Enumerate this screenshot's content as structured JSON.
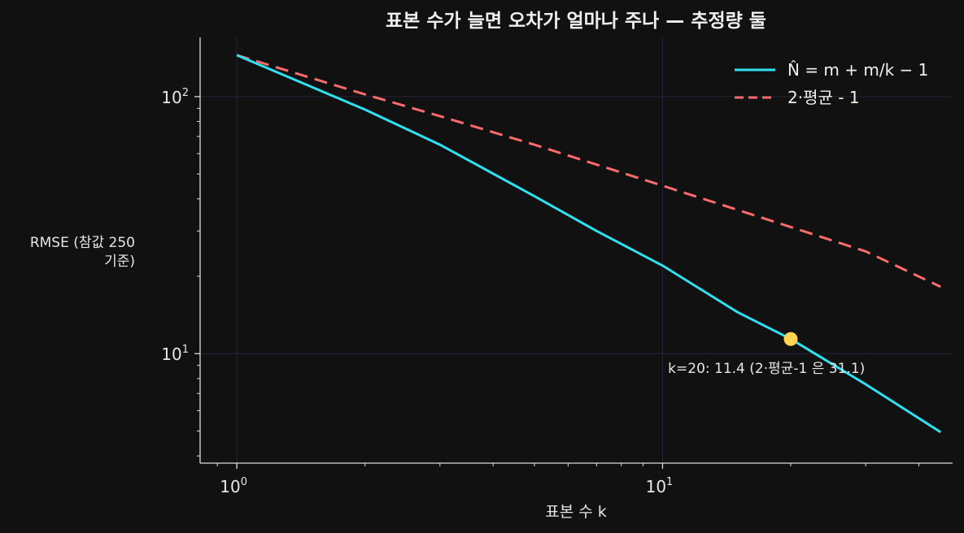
{
  "chart_data": {
    "type": "line",
    "title": "표본 수가 늘면 오차가 얼마나 주나 — 추정량 둘",
    "xlabel": "표본 수 k",
    "ylabel_lines": [
      "RMSE (참값 250",
      "기준)"
    ],
    "x_scale": "log",
    "y_scale": "log",
    "xlim": [
      0.82,
      48
    ],
    "ylim": [
      3.75,
      170
    ],
    "x_ticks": [
      {
        "value": 1,
        "base": "10",
        "exp": "0"
      },
      {
        "value": 10,
        "base": "10",
        "exp": "1"
      }
    ],
    "y_ticks": [
      {
        "value": 10,
        "base": "10",
        "exp": "1"
      },
      {
        "value": 100,
        "base": "10",
        "exp": "2"
      }
    ],
    "grid": true,
    "legend_position": "top-right",
    "series": [
      {
        "name": "N̂ = m + m/k − 1",
        "color": "#2ee0f0",
        "style": "solid",
        "x": [
          1,
          2,
          3,
          5,
          7,
          10,
          15,
          20,
          30,
          45
        ],
        "y": [
          145,
          89,
          65,
          41,
          30,
          22,
          14.5,
          11.4,
          7.6,
          4.95
        ]
      },
      {
        "name": "2·평균 - 1",
        "color": "#ff6b6b",
        "style": "dashed",
        "x": [
          1,
          2,
          3,
          5,
          10,
          20,
          30,
          45
        ],
        "y": [
          145,
          102,
          84,
          65,
          45,
          31.1,
          25,
          18.2
        ]
      }
    ],
    "highlight": {
      "x": 20,
      "y": 11.4,
      "color": "#ffd54f"
    },
    "annotation": {
      "text": "k=20: 11.4 (2·평균-1 은 31.1)",
      "x": 10.3,
      "y": 8.4
    }
  }
}
